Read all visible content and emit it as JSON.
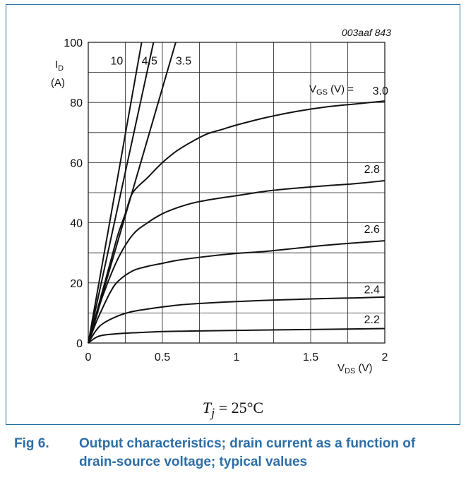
{
  "figure_code": "003aaf 843",
  "condition": {
    "symbol": "T",
    "subscript": "j",
    "rest": " = 25°C"
  },
  "caption": {
    "number": "Fig 6.",
    "text": "Output characteristics; drain current as a function of drain-source voltage; typical values"
  },
  "chart_data": {
    "type": "line",
    "xlabel": {
      "main": "V",
      "sub": "DS",
      "unit": " (V)"
    },
    "ylabel": {
      "main": "I",
      "sub": "D",
      "unit": "(A)"
    },
    "xlim": [
      0,
      2
    ],
    "ylim": [
      0,
      100
    ],
    "x_ticks": [
      "0",
      "0.5",
      "1",
      "1.5",
      "2"
    ],
    "y_ticks": [
      "0",
      "20",
      "40",
      "60",
      "80",
      "100"
    ],
    "x_minor_step": 0.25,
    "y_minor_step": 10,
    "grid": true,
    "series_label_prefix": {
      "main": "V",
      "sub": "GS",
      "unit": " (V) ="
    },
    "series": [
      {
        "name": "10",
        "x": [
          0,
          0.36
        ],
        "y": [
          0,
          100
        ]
      },
      {
        "name": "4.5",
        "x": [
          0,
          0.44
        ],
        "y": [
          0,
          100
        ]
      },
      {
        "name": "3.5",
        "x": [
          0,
          0.59
        ],
        "y": [
          0,
          100
        ]
      },
      {
        "name": "3.0",
        "x": [
          0,
          0.05,
          0.1,
          0.15,
          0.2,
          0.25,
          0.3,
          0.4,
          0.5,
          0.6,
          0.7,
          0.8,
          0.9,
          1.0,
          1.2,
          1.4,
          1.6,
          1.8,
          2.0
        ],
        "y": [
          0,
          9,
          18,
          27,
          36,
          43,
          50,
          55,
          60,
          64,
          67,
          69.5,
          71,
          72.5,
          75,
          77,
          78.5,
          79.5,
          80.5
        ]
      },
      {
        "name": "2.8",
        "x": [
          0,
          0.05,
          0.1,
          0.2,
          0.3,
          0.4,
          0.5,
          0.6,
          0.7,
          0.8,
          0.9,
          1.0,
          1.2,
          1.4,
          1.6,
          1.8,
          2.0
        ],
        "y": [
          0,
          8,
          16,
          28,
          36,
          40,
          43,
          45,
          46.5,
          47.5,
          48.3,
          49,
          50.5,
          51.5,
          52.3,
          53,
          54
        ]
      },
      {
        "name": "2.6",
        "x": [
          0,
          0.05,
          0.1,
          0.15,
          0.2,
          0.3,
          0.4,
          0.5,
          0.6,
          0.8,
          1.0,
          1.2,
          1.4,
          1.6,
          1.8,
          2.0
        ],
        "y": [
          0,
          6.5,
          12,
          17,
          20.5,
          24,
          25.5,
          26.5,
          27.5,
          28.8,
          29.8,
          30.5,
          31.5,
          32.5,
          33.3,
          34
        ]
      },
      {
        "name": "2.4",
        "x": [
          0,
          0.05,
          0.1,
          0.2,
          0.3,
          0.4,
          0.5,
          0.6,
          0.7,
          0.8,
          1.0,
          1.2,
          1.4,
          1.6,
          1.8,
          2.0
        ],
        "y": [
          0,
          4,
          6.5,
          9,
          10.5,
          11.3,
          12,
          12.6,
          13,
          13.3,
          13.8,
          14.2,
          14.5,
          14.8,
          15,
          15.3
        ]
      },
      {
        "name": "2.2",
        "x": [
          0,
          0.05,
          0.1,
          0.2,
          0.3,
          0.4,
          0.5,
          0.7,
          1.0,
          1.5,
          2.0
        ],
        "y": [
          0,
          1.8,
          2.6,
          3.1,
          3.4,
          3.6,
          3.8,
          4.0,
          4.2,
          4.5,
          4.8
        ]
      }
    ]
  }
}
